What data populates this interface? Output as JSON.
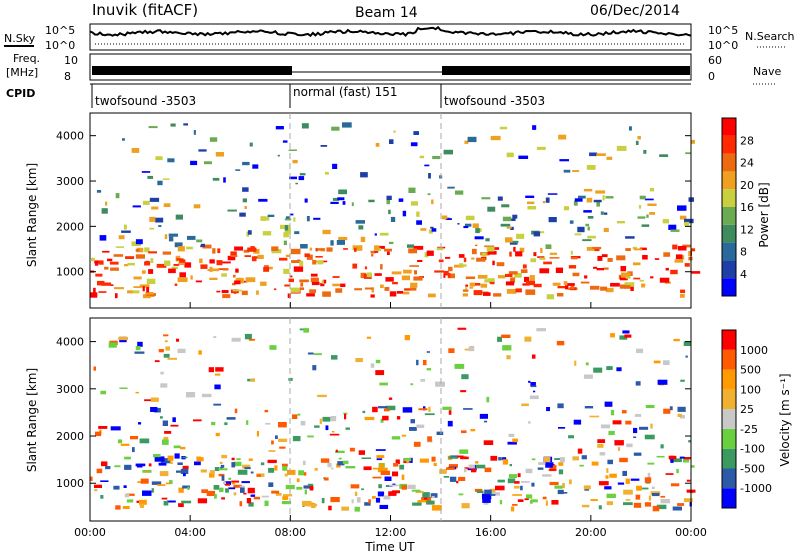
{
  "header": {
    "station": "Inuvik (fitACF)",
    "beam": "Beam 14",
    "date": "06/Dec/2014"
  },
  "labels": {
    "nsky": "N.Sky",
    "nsearch": "N.Search",
    "freq": "Freq.",
    "mhz": "[MHz]",
    "nave": "Nave",
    "cpid": "CPID",
    "nsky_hi": "10^5",
    "nsky_lo": "10^0",
    "freq_hi": "10",
    "freq_lo": "8",
    "nave_hi": "60",
    "nave_lo": "0",
    "yaxis": "Slant Range [km]",
    "xaxis": "Time UT",
    "power_title": "Power [dB]",
    "velocity_title": "Velocity [m s⁻¹]"
  },
  "cpid_segments": [
    {
      "label": "twofsound -3503",
      "start_h": 0,
      "end_h": 8
    },
    {
      "label": "normal (fast) 151",
      "start_h": 8,
      "end_h": 14
    },
    {
      "label": "twofsound -3503",
      "start_h": 14,
      "end_h": 24
    }
  ],
  "colors": {
    "power_scale": [
      "#0000ff",
      "#1e3fa8",
      "#2a6a9a",
      "#3f8a5e",
      "#6aaa50",
      "#c8d040",
      "#f0a020",
      "#ee6a10",
      "#ff2a00",
      "#ff0000"
    ],
    "velocity_scale": [
      "#ff0000",
      "#ff5a00",
      "#ff9a00",
      "#f0b030",
      "#c8c8c8",
      "#6ad040",
      "#3a9a60",
      "#2a5aa8",
      "#0000ff"
    ]
  },
  "chart_data": [
    {
      "type": "line",
      "title": "Inuvik (fitACF)",
      "series": [
        {
          "name": "N.Sky"
        }
      ],
      "note_scale": "log",
      "ylim": [
        1,
        100000
      ],
      "xlim": [
        0,
        24
      ]
    },
    {
      "type": "heatmap",
      "title": "Power [dB]",
      "xlabel": "Time UT",
      "ylabel": "Slant Range [km]",
      "x_ticks": [
        "00:00",
        "04:00",
        "08:00",
        "12:00",
        "16:00",
        "20:00",
        "00:00"
      ],
      "y_ticks": [
        1000,
        2000,
        3000,
        4000
      ],
      "xlim": [
        0,
        24
      ],
      "ylim": [
        200,
        4500
      ],
      "colorbar_ticks": [
        4,
        8,
        12,
        16,
        20,
        24,
        28
      ],
      "colorbar_range": [
        0,
        30
      ]
    },
    {
      "type": "heatmap",
      "title": "Velocity [m s⁻¹]",
      "xlabel": "Time UT",
      "ylabel": "Slant Range [km]",
      "x_ticks": [
        "00:00",
        "04:00",
        "08:00",
        "12:00",
        "16:00",
        "20:00",
        "00:00"
      ],
      "y_ticks": [
        1000,
        2000,
        3000,
        4000
      ],
      "xlim": [
        0,
        24
      ],
      "ylim": [
        200,
        4500
      ],
      "colorbar_ticks": [
        1000,
        500,
        100,
        25,
        -25,
        -100,
        -500,
        -1000
      ]
    }
  ]
}
